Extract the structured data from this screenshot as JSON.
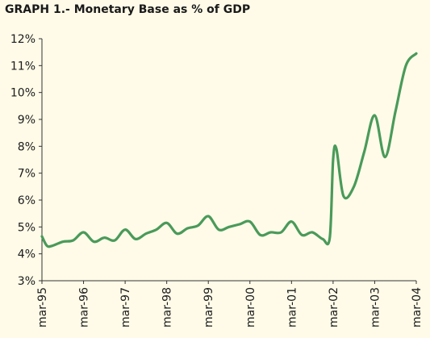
{
  "chart_data": {
    "type": "line",
    "title": "GRAPH 1.- Monetary Base as % of GDP",
    "xlabel": "",
    "ylabel": "",
    "ylim": [
      3,
      12
    ],
    "y_ticks": [
      "3%",
      "4%",
      "5%",
      "6%",
      "7%",
      "8%",
      "9%",
      "10%",
      "11%",
      "12%"
    ],
    "x_ticks": [
      "mar-95",
      "mar-96",
      "mar-97",
      "mar-98",
      "mar-99",
      "mar-00",
      "mar-01",
      "mar-02",
      "mar-03",
      "mar-04"
    ],
    "grid": false,
    "line_color": "#4a9a5a",
    "series": [
      {
        "x": [
          1995.0,
          1995.12,
          1995.25,
          1995.5,
          1995.75,
          1996.0,
          1996.25,
          1996.5,
          1996.75,
          1997.0,
          1997.25,
          1997.5,
          1997.75,
          1998.0,
          1998.25,
          1998.5,
          1998.75,
          1999.0,
          1999.25,
          1999.5,
          1999.75,
          2000.0,
          2000.25,
          2000.5,
          2000.75,
          2001.0,
          2001.25,
          2001.5,
          2001.75,
          2001.92,
          2002.0,
          2002.08,
          2002.25,
          2002.5,
          2002.75,
          2003.0,
          2003.25,
          2003.5,
          2003.75,
          2004.0
        ],
        "values": [
          4.65,
          4.3,
          4.3,
          4.45,
          4.5,
          4.8,
          4.45,
          4.6,
          4.5,
          4.9,
          4.55,
          4.75,
          4.9,
          5.15,
          4.75,
          4.95,
          5.05,
          5.4,
          4.9,
          5.0,
          5.1,
          5.2,
          4.7,
          4.8,
          4.8,
          5.2,
          4.7,
          4.8,
          4.55,
          4.6,
          7.5,
          7.9,
          6.15,
          6.5,
          7.8,
          9.15,
          7.6,
          9.3,
          11.0,
          11.45
        ]
      }
    ]
  }
}
